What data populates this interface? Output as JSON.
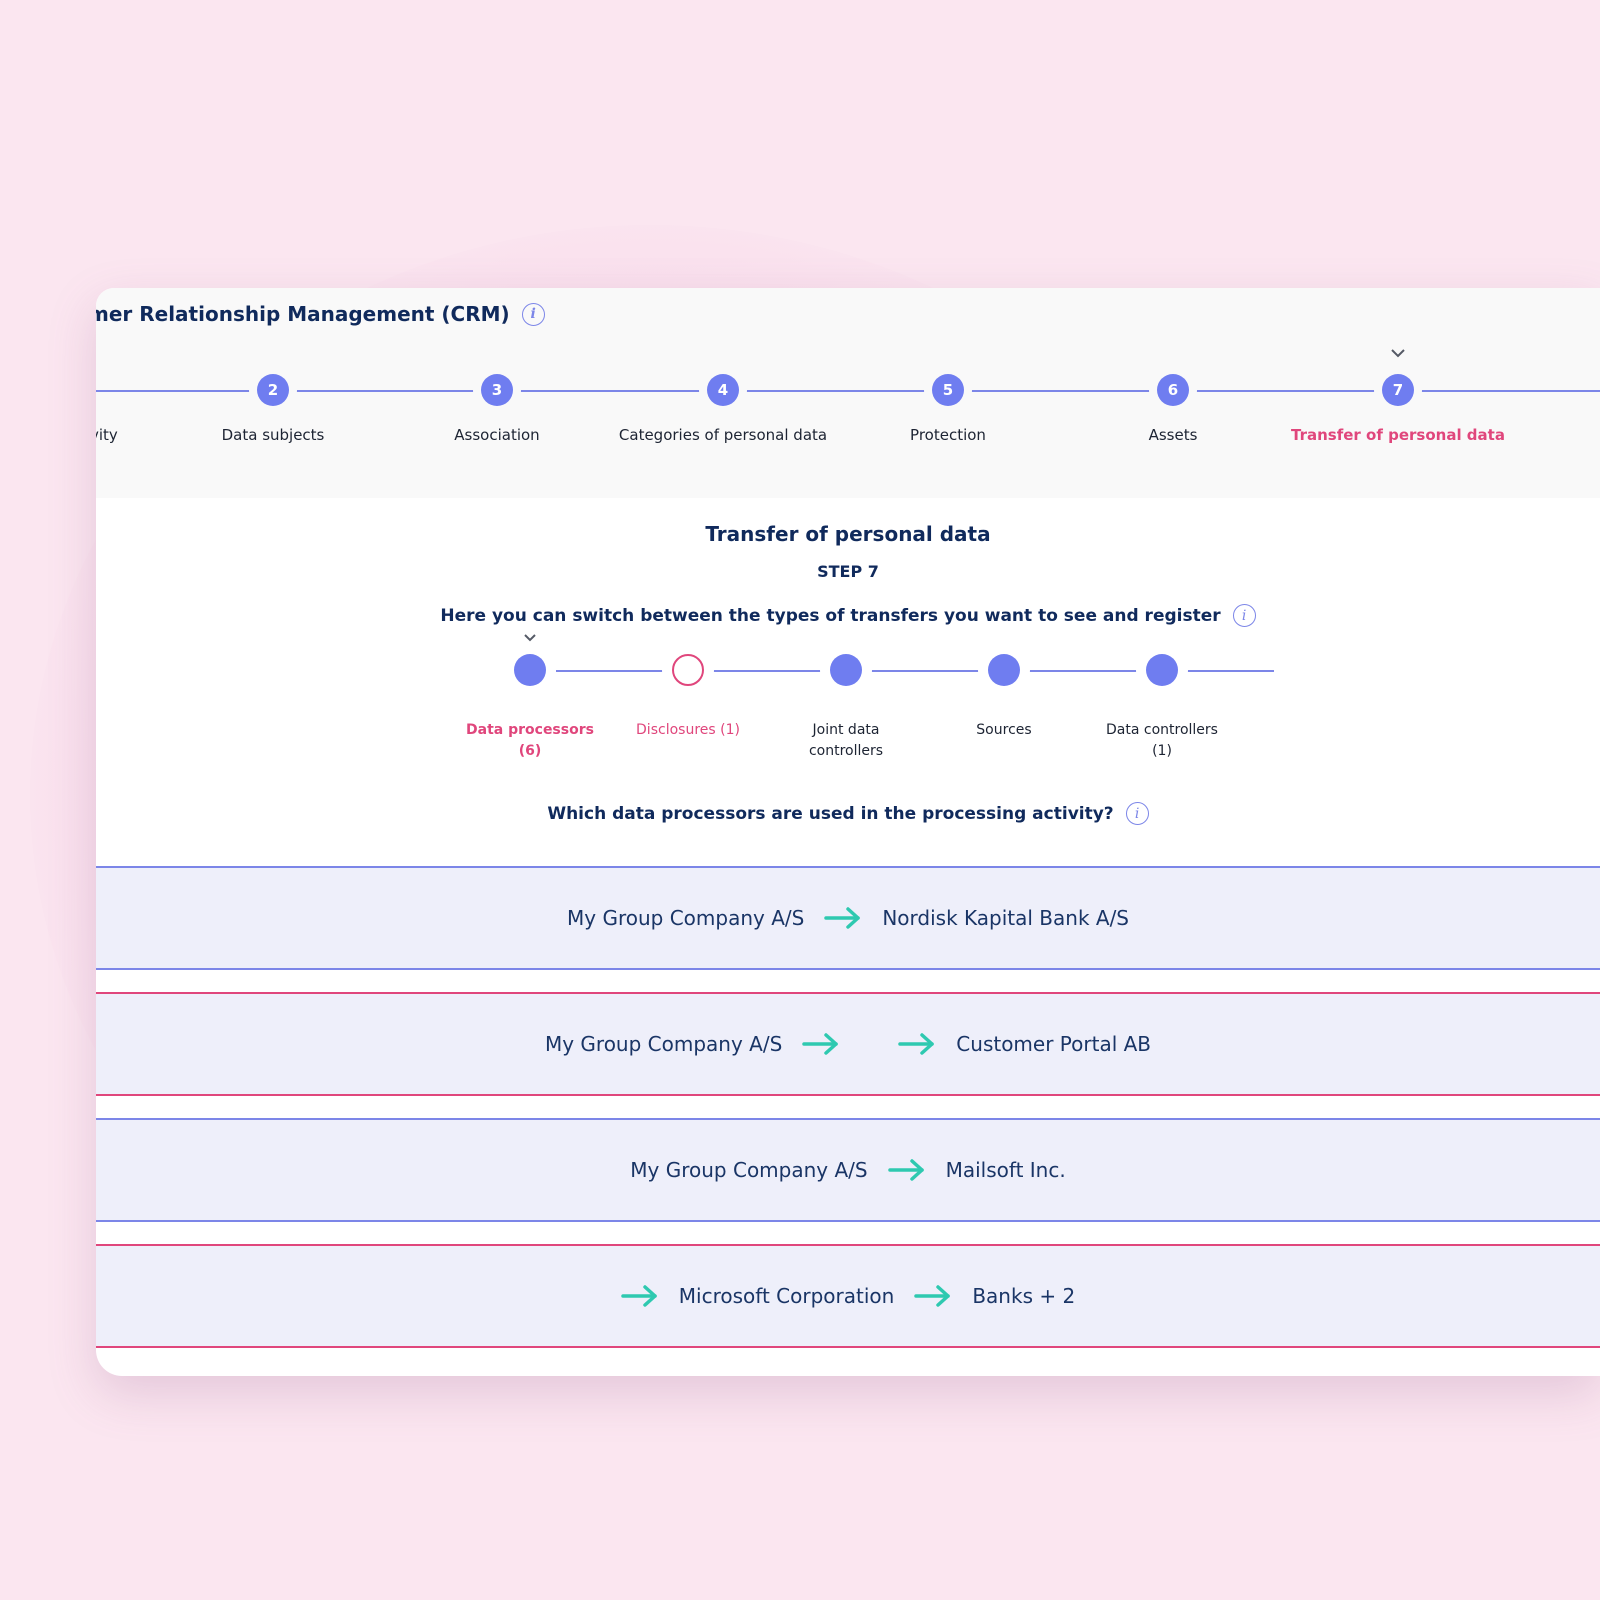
{
  "header": {
    "title": "mer Relationship Management (CRM)"
  },
  "stepper": {
    "partial_label": "vity",
    "steps": [
      {
        "number": "2",
        "label": "Data subjects"
      },
      {
        "number": "3",
        "label": "Association"
      },
      {
        "number": "4",
        "label": "Categories of personal data"
      },
      {
        "number": "5",
        "label": "Protection"
      },
      {
        "number": "6",
        "label": "Assets"
      },
      {
        "number": "7",
        "label": "Transfer of personal data"
      }
    ],
    "active_step": "7"
  },
  "main": {
    "title": "Transfer of personal data",
    "step_label": "STEP 7",
    "switch_heading": "Here you can switch between the types of transfers you want to see and register",
    "transfer_types": [
      {
        "label": "Data processors (6)",
        "state": "active"
      },
      {
        "label": "Disclosures (1)",
        "state": "outline"
      },
      {
        "label": "Joint data controllers",
        "state": "default"
      },
      {
        "label": "Sources",
        "state": "default"
      },
      {
        "label": "Data controllers (1)",
        "state": "default"
      }
    ],
    "question": "Which data processors are used in the processing activity?",
    "rows": [
      {
        "from": "My Group Company A/S",
        "to": "Nordisk Kapital Bank A/S"
      },
      {
        "from": "My Group Company A/S",
        "to": "Customer Portal AB"
      },
      {
        "from": "My Group Company A/S",
        "to": "Mailsoft Inc."
      },
      {
        "from": "Microsoft Corporation",
        "to": "Banks + 2"
      }
    ]
  },
  "colors": {
    "accent_blue": "#6f7df0",
    "accent_pink": "#e0467c",
    "arrow_teal": "#2ec9b0",
    "navy_text": "#102a5c",
    "background": "#fbe6f0"
  },
  "icons": {
    "info": "info-icon",
    "chevron": "chevron-down-icon",
    "arrow": "arrow-right-icon"
  }
}
